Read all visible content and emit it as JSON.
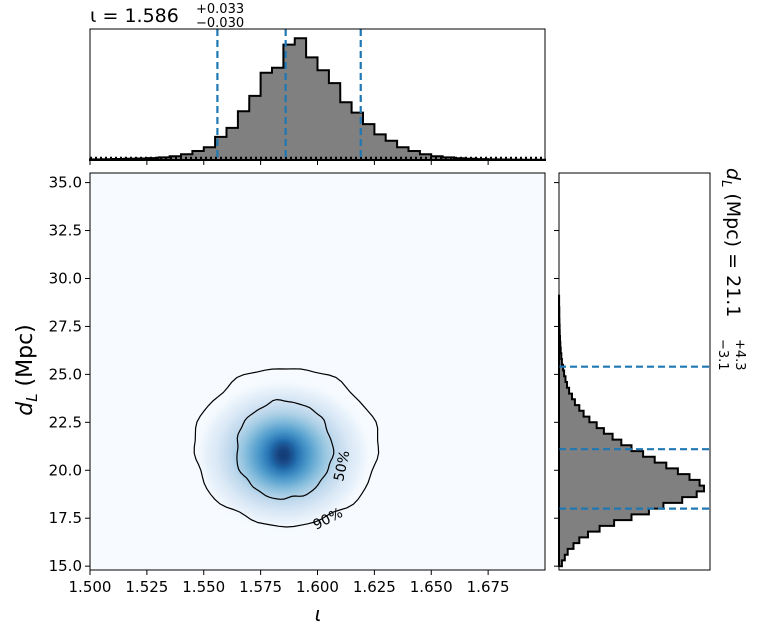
{
  "chart_data": {
    "type": "heatmap",
    "panels": {
      "top": {
        "title_param": "ι",
        "title_median": "1.586",
        "title_plus": "+0.033",
        "title_minus": "−0.030",
        "median": 1.586,
        "lower": 1.556,
        "upper": 1.619,
        "bin_edges_start": 1.5,
        "bin_width": 0.005,
        "counts": [
          0.005,
          0.006,
          0.008,
          0.01,
          0.012,
          0.015,
          0.02,
          0.03,
          0.045,
          0.07,
          0.1,
          0.18,
          0.25,
          0.38,
          0.5,
          0.68,
          0.72,
          0.9,
          0.95,
          0.8,
          0.7,
          0.6,
          0.45,
          0.37,
          0.28,
          0.2,
          0.15,
          0.1,
          0.07,
          0.045,
          0.03,
          0.02,
          0.014,
          0.01,
          0.007,
          0.005,
          0.004,
          0.003,
          0.002,
          0.002
        ]
      },
      "joint": {
        "xlabel": "ι",
        "ylabel": "d_L (Mpc)",
        "xlim": [
          1.5,
          1.7
        ],
        "ylim": [
          14.8,
          35.5
        ],
        "xticks": [
          "1.500",
          "1.525",
          "1.550",
          "1.575",
          "1.600",
          "1.625",
          "1.650",
          "1.675"
        ],
        "yticks": [
          "15.0",
          "17.5",
          "20.0",
          "22.5",
          "25.0",
          "27.5",
          "30.0",
          "32.5",
          "35.0"
        ],
        "peak": {
          "x": 1.585,
          "y": 20.7
        },
        "contour_labels": [
          "50%",
          "90%"
        ],
        "colormap": [
          "#f7fbff",
          "#c6dbef",
          "#6baed6",
          "#2171b5",
          "#08306b"
        ]
      },
      "right": {
        "title_param": "d",
        "title_sub": "L",
        "title_unit": " (Mpc) = 21.1",
        "title_plus": "+4.3",
        "title_minus": "−3.1",
        "median": 21.1,
        "lower": 18.0,
        "upper": 25.4,
        "bin_edges_start": 15.0,
        "bin_width": 0.3,
        "counts": [
          0.02,
          0.04,
          0.06,
          0.1,
          0.14,
          0.2,
          0.28,
          0.38,
          0.5,
          0.62,
          0.72,
          0.85,
          0.95,
          1.0,
          0.97,
          0.9,
          0.82,
          0.74,
          0.66,
          0.58,
          0.5,
          0.43,
          0.37,
          0.31,
          0.26,
          0.21,
          0.17,
          0.14,
          0.11,
          0.09,
          0.07,
          0.055,
          0.045,
          0.035,
          0.028,
          0.02,
          0.016,
          0.012,
          0.009,
          0.007,
          0.005,
          0.004,
          0.003,
          0.002,
          0.002,
          0.001,
          0.001
        ]
      }
    },
    "colors": {
      "hist_fill": "#808080",
      "quantile_line": "#1f77b4",
      "outline": "#000000"
    }
  }
}
